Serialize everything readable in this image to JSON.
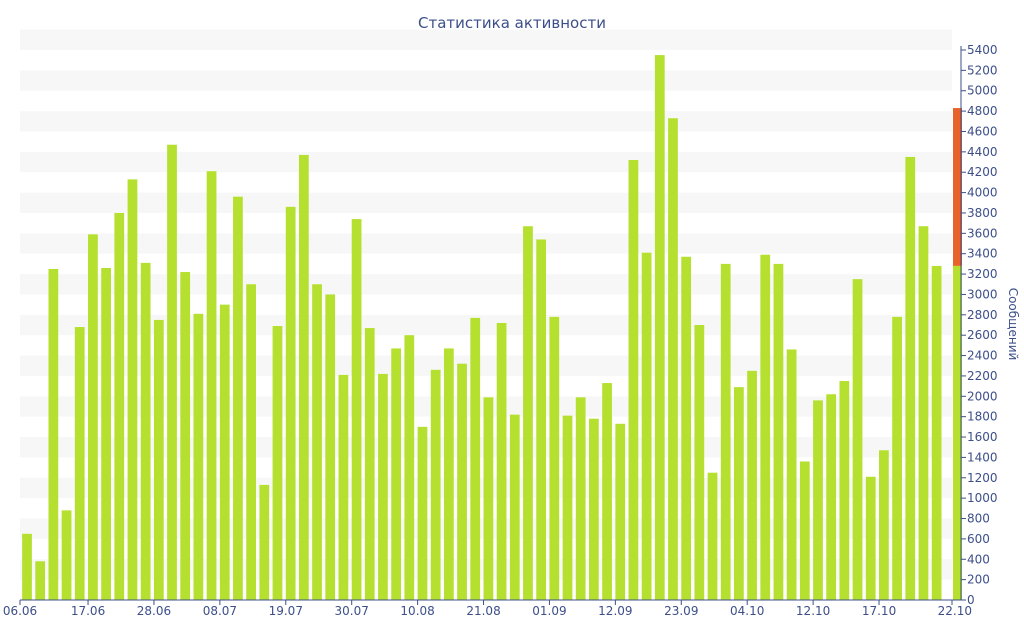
{
  "chart_data": {
    "type": "bar",
    "title": "Статистика активности",
    "ylabel": "Сообщений",
    "xlabel": "",
    "ylim": [
      0,
      5400
    ],
    "y_ticks": [
      0,
      200,
      400,
      600,
      800,
      1000,
      1200,
      1400,
      1600,
      1800,
      2000,
      2200,
      2400,
      2600,
      2800,
      3000,
      3200,
      3400,
      3600,
      3800,
      4000,
      4200,
      4400,
      4600,
      4800,
      5000,
      5200,
      5400
    ],
    "x_tick_labels": [
      "06.06",
      "17.06",
      "28.06",
      "08.07",
      "19.07",
      "30.07",
      "10.08",
      "21.08",
      "01.09",
      "12.09",
      "23.09",
      "04.10",
      "12.10",
      "17.10",
      "22.10"
    ],
    "x_tick_index": [
      0,
      5,
      10,
      15,
      20,
      25,
      30,
      35,
      40,
      45,
      50,
      55,
      60,
      65,
      70
    ],
    "grid": "horizontal bands",
    "colors": {
      "bar": "#b5e02f",
      "current": "#e8632c",
      "axis": "#3d4f8a",
      "band": "#f7f7f7"
    },
    "values": [
      650,
      380,
      3250,
      880,
      2680,
      3590,
      3260,
      3800,
      4130,
      3310,
      2750,
      4470,
      3220,
      2810,
      4210,
      2900,
      3960,
      3100,
      1130,
      2690,
      3860,
      4370,
      3100,
      3000,
      2210,
      3740,
      2670,
      2220,
      2470,
      2600,
      1700,
      2260,
      2470,
      2320,
      2770,
      1990,
      2720,
      1820,
      3670,
      3540,
      2780,
      1810,
      1990,
      1780,
      2130,
      1730,
      4320,
      3410,
      5350,
      4730,
      3370,
      2700,
      1250,
      3300,
      2090,
      2250,
      3390,
      3300,
      2460,
      1360,
      1960,
      2020,
      2150,
      3150,
      1210,
      1470,
      2780,
      4350,
      3670,
      3280
    ],
    "current_value": 4830
  }
}
